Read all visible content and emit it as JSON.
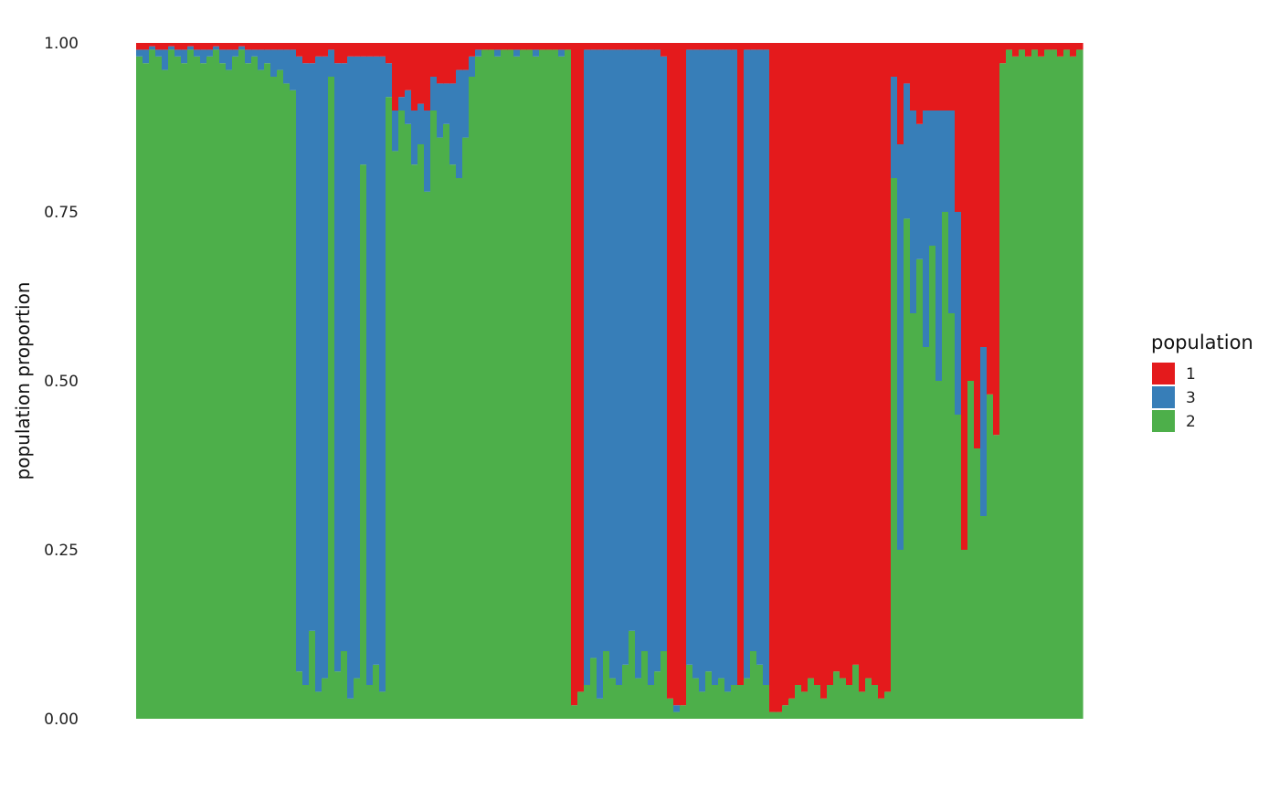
{
  "chart_data": {
    "type": "bar",
    "stacked": true,
    "title": "",
    "xlabel": "",
    "ylabel": "population proportion",
    "ylim": [
      0,
      1
    ],
    "yticks": [
      "0.00",
      "0.25",
      "0.50",
      "0.75",
      "1.00"
    ],
    "ytick_values": [
      0,
      0.25,
      0.5,
      0.75,
      1.0
    ],
    "grid": false,
    "legend": {
      "title": "population",
      "placement": "right"
    },
    "stack_order_bottom_to_top": [
      "2",
      "3",
      "1"
    ],
    "series": [
      {
        "name": "1",
        "color": "#E41A1C",
        "values": [
          0.01,
          0.01,
          0.005,
          0.01,
          0.01,
          0.005,
          0.01,
          0.01,
          0.005,
          0.01,
          0.01,
          0.01,
          0.005,
          0.01,
          0.01,
          0.01,
          0.005,
          0.01,
          0.01,
          0.01,
          0.01,
          0.01,
          0.01,
          0.01,
          0.01,
          0.02,
          0.03,
          0.03,
          0.02,
          0.02,
          0.01,
          0.03,
          0.03,
          0.02,
          0.02,
          0.02,
          0.02,
          0.02,
          0.02,
          0.03,
          0.1,
          0.08,
          0.07,
          0.1,
          0.09,
          0.1,
          0.05,
          0.06,
          0.06,
          0.06,
          0.04,
          0.04,
          0.02,
          0.01,
          0.01,
          0.01,
          0.01,
          0.01,
          0.01,
          0.01,
          0.01,
          0.01,
          0.01,
          0.01,
          0.01,
          0.01,
          0.01,
          0.01,
          0.98,
          0.96,
          0.01,
          0.01,
          0.01,
          0.01,
          0.01,
          0.01,
          0.01,
          0.01,
          0.01,
          0.01,
          0.01,
          0.01,
          0.02,
          0.97,
          0.98,
          0.98,
          0.01,
          0.01,
          0.01,
          0.01,
          0.01,
          0.01,
          0.01,
          0.01,
          0.95,
          0.01,
          0.01,
          0.01,
          0.01,
          0.99,
          0.99,
          0.98,
          0.97,
          0.95,
          0.96,
          0.94,
          0.95,
          0.97,
          0.95,
          0.93,
          0.94,
          0.95,
          0.92,
          0.96,
          0.94,
          0.95,
          0.97,
          0.96,
          0.05,
          0.15,
          0.06,
          0.1,
          0.12,
          0.1,
          0.1,
          0.1,
          0.1,
          0.1,
          0.25,
          0.75,
          0.5,
          0.6,
          0.45,
          0.52,
          0.58,
          0.03,
          0.01,
          0.02,
          0.01,
          0.02,
          0.01,
          0.02,
          0.01,
          0.01,
          0.02,
          0.01,
          0.02,
          0.01
        ]
      },
      {
        "name": "3",
        "color": "#377EB8",
        "values": [
          0.01,
          0.02,
          0.005,
          0.01,
          0.03,
          0.005,
          0.01,
          0.02,
          0.005,
          0.01,
          0.02,
          0.01,
          0.005,
          0.02,
          0.03,
          0.01,
          0.005,
          0.02,
          0.01,
          0.03,
          0.02,
          0.04,
          0.03,
          0.05,
          0.06,
          0.91,
          0.92,
          0.84,
          0.94,
          0.92,
          0.04,
          0.9,
          0.87,
          0.95,
          0.92,
          0.16,
          0.93,
          0.9,
          0.94,
          0.05,
          0.06,
          0.02,
          0.05,
          0.08,
          0.06,
          0.12,
          0.05,
          0.08,
          0.06,
          0.12,
          0.16,
          0.1,
          0.03,
          0.01,
          0,
          0,
          0.01,
          0,
          0,
          0.01,
          0,
          0,
          0.01,
          0,
          0,
          0,
          0.01,
          0,
          0,
          0,
          0.94,
          0.9,
          0.96,
          0.89,
          0.93,
          0.94,
          0.91,
          0.86,
          0.93,
          0.89,
          0.94,
          0.92,
          0.88,
          0,
          0.01,
          0,
          0.91,
          0.93,
          0.95,
          0.92,
          0.94,
          0.93,
          0.95,
          0.94,
          0,
          0.93,
          0.89,
          0.91,
          0.94,
          0,
          0,
          0,
          0,
          0,
          0,
          0,
          0,
          0,
          0,
          0,
          0,
          0,
          0,
          0,
          0,
          0,
          0,
          0,
          0.15,
          0.6,
          0.2,
          0.3,
          0.2,
          0.35,
          0.2,
          0.4,
          0.15,
          0.3,
          0.3,
          0,
          0,
          0,
          0.25,
          0,
          0,
          0,
          0,
          0,
          0,
          0,
          0,
          0,
          0,
          0,
          0,
          0,
          0,
          0
        ]
      },
      {
        "name": "2",
        "color": "#4DAF4A",
        "values": [
          0.98,
          0.97,
          0.99,
          0.98,
          0.96,
          0.99,
          0.98,
          0.97,
          0.99,
          0.98,
          0.97,
          0.98,
          0.99,
          0.97,
          0.96,
          0.98,
          0.99,
          0.97,
          0.98,
          0.96,
          0.97,
          0.95,
          0.96,
          0.94,
          0.93,
          0.07,
          0.05,
          0.13,
          0.04,
          0.06,
          0.95,
          0.07,
          0.1,
          0.03,
          0.06,
          0.82,
          0.05,
          0.08,
          0.04,
          0.92,
          0.84,
          0.9,
          0.88,
          0.82,
          0.85,
          0.78,
          0.9,
          0.86,
          0.88,
          0.82,
          0.8,
          0.86,
          0.95,
          0.98,
          0.99,
          0.99,
          0.98,
          0.99,
          0.99,
          0.98,
          0.99,
          0.99,
          0.98,
          0.99,
          0.99,
          0.99,
          0.98,
          0.99,
          0.02,
          0.04,
          0.05,
          0.09,
          0.03,
          0.1,
          0.06,
          0.05,
          0.08,
          0.13,
          0.06,
          0.1,
          0.05,
          0.07,
          0.1,
          0.03,
          0.01,
          0.02,
          0.08,
          0.06,
          0.04,
          0.07,
          0.05,
          0.06,
          0.04,
          0.05,
          0.05,
          0.06,
          0.1,
          0.08,
          0.05,
          0.01,
          0.01,
          0.02,
          0.03,
          0.05,
          0.04,
          0.06,
          0.05,
          0.03,
          0.05,
          0.07,
          0.06,
          0.05,
          0.08,
          0.04,
          0.06,
          0.05,
          0.03,
          0.04,
          0.8,
          0.25,
          0.74,
          0.6,
          0.68,
          0.55,
          0.7,
          0.5,
          0.75,
          0.6,
          0.45,
          0.25,
          0.5,
          0.4,
          0.3,
          0.48,
          0.42,
          0.97,
          0.99,
          0.98,
          0.99,
          0.98,
          0.99,
          0.98,
          0.99,
          0.99,
          0.98,
          0.99,
          0.98,
          0.99
        ]
      }
    ]
  }
}
